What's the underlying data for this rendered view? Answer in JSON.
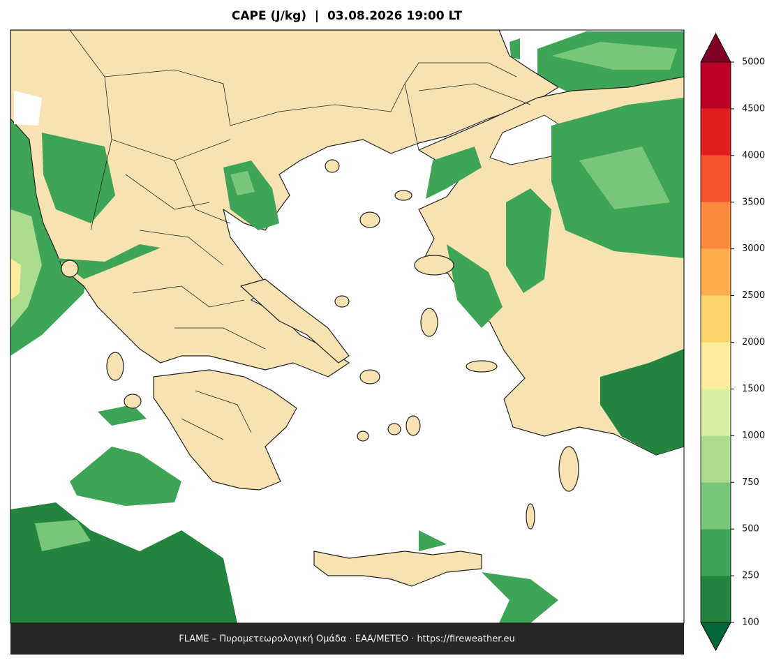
{
  "title": "CAPE (J/kg)  |  03.08.2026 19:00 LT",
  "footer": "FLAME – Πυρομετεωρολογική Ομάδα · ΕΑΑ/METEO · https://fireweather.eu",
  "colorbar": {
    "levels": [
      100,
      250,
      500,
      750,
      1000,
      1500,
      2000,
      2500,
      3000,
      3500,
      4000,
      4500,
      5000
    ],
    "colors": [
      "#23843f",
      "#3ea556",
      "#78c679",
      "#acdc8d",
      "#d9f0a3",
      "#feeb9b",
      "#fed46c",
      "#fdad4a",
      "#fc8a3e",
      "#f9522f",
      "#e31f1d",
      "#bd0026"
    ],
    "under_color": "#006837",
    "over_color": "#800026"
  }
}
